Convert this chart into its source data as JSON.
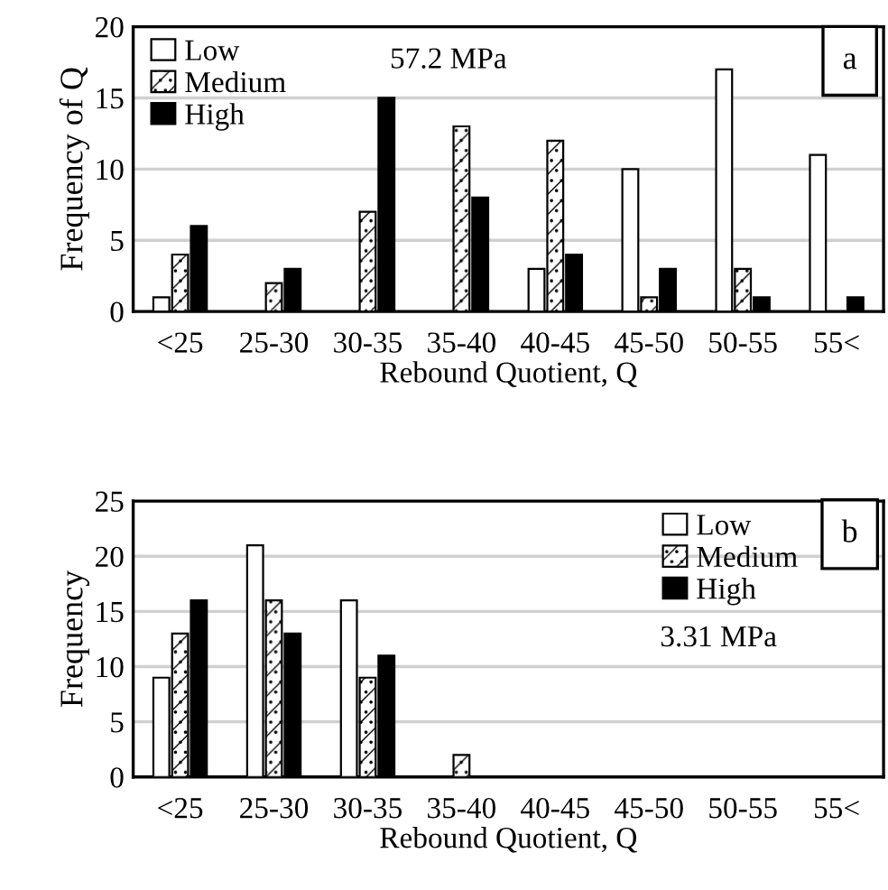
{
  "chart_data": [
    {
      "type": "bar",
      "ylabel": "Frequency of Q",
      "xlabel": "Rebound Quotient, Q",
      "categories": [
        "<25",
        "25-30",
        "30-35",
        "35-40",
        "40-45",
        "45-50",
        "50-55",
        "55<"
      ],
      "series": [
        {
          "name": "Low",
          "color": "#ffffff",
          "values": [
            1,
            0,
            0,
            0,
            3,
            10,
            17,
            11
          ]
        },
        {
          "name": "Medium",
          "color": "#000000",
          "values": [
            4,
            2,
            7,
            13,
            12,
            1,
            3,
            0
          ]
        },
        {
          "name": "High",
          "color": "#000000",
          "values": [
            6,
            3,
            15,
            8,
            4,
            3,
            1,
            1
          ]
        }
      ],
      "ylim": [
        0,
        20
      ],
      "yticks": [
        0,
        5,
        10,
        15,
        20
      ],
      "grid": "y",
      "legend": "top left",
      "annotations": [
        "57.2 MPa",
        "a"
      ]
    },
    {
      "type": "bar",
      "ylabel": "Frequency",
      "xlabel": "Rebound Quotient, Q",
      "categories": [
        "<25",
        "25-30",
        "30-35",
        "35-40",
        "40-45",
        "45-50",
        "50-55",
        "55<"
      ],
      "series": [
        {
          "name": "Low",
          "color": "#ffffff",
          "values": [
            9,
            21,
            16,
            0,
            0,
            0,
            0,
            0
          ]
        },
        {
          "name": "Medium",
          "color": "#000000",
          "values": [
            13,
            16,
            9,
            2,
            0,
            0,
            0,
            0
          ]
        },
        {
          "name": "High",
          "color": "#000000",
          "values": [
            16,
            13,
            11,
            0,
            0,
            0,
            0,
            0
          ]
        }
      ],
      "ylim": [
        0,
        25
      ],
      "yticks": [
        0,
        5,
        10,
        15,
        20,
        25
      ],
      "grid": "y",
      "legend": "top right",
      "annotations": [
        "3.31 MPa",
        "b"
      ]
    }
  ]
}
